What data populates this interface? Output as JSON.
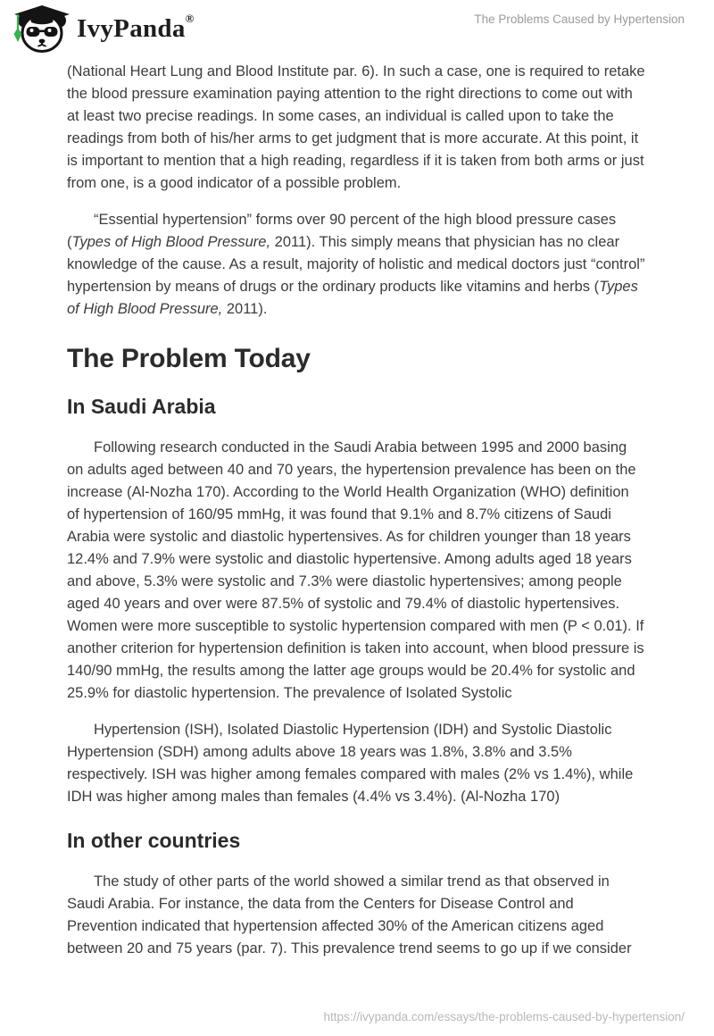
{
  "header": {
    "logo": {
      "text": "IvyPanda",
      "registered_mark": "®",
      "icon": "panda-graduate-icon"
    },
    "document_title": "The Problems Caused by Hypertension"
  },
  "content": {
    "blocks": [
      {
        "type": "paragraph",
        "indent": false,
        "segments": [
          {
            "text": "(National Heart Lung and Blood Institute par. 6). In such a case, one is required to retake the blood pressure examination paying attention to the right directions to come out with at least two precise readings. In some cases, an individual is called upon to take the readings from both of his/her arms to get judgment that is more accurate. At this point, it is important to mention that a high reading, regardless if it is taken from both arms or just from one, is a good indicator of a possible problem."
          }
        ]
      },
      {
        "type": "paragraph",
        "indent": true,
        "segments": [
          {
            "text": "“Essential hypertension” forms over 90 percent of the high blood pressure cases ("
          },
          {
            "text": "Types of High Blood Pressure,",
            "italic": true
          },
          {
            "text": " 2011). This simply means that physician has no clear knowledge of the cause. As a result, majority of holistic and medical doctors just “control” hypertension by means of drugs or the ordinary products like vitamins and herbs ("
          },
          {
            "text": "Types of High Blood Pressure,",
            "italic": true
          },
          {
            "text": " 2011)."
          }
        ]
      },
      {
        "type": "heading1",
        "text": "The Problem Today"
      },
      {
        "type": "heading2",
        "text": "In Saudi Arabia"
      },
      {
        "type": "paragraph",
        "indent": true,
        "segments": [
          {
            "text": "Following research conducted in the Saudi Arabia between 1995 and 2000 basing on adults aged between 40 and 70 years, the hypertension prevalence has been on the increase (Al-Nozha 170). According to the World Health Organization (WHO) definition of hypertension of 160/95 mmHg, it was found that 9.1% and 8.7% citizens of Saudi Arabia were systolic and diastolic hypertensives. As for children younger than 18 years 12.4% and 7.9% were systolic and diastolic hypertensive. Among adults aged 18 years and above, 5.3% were systolic and 7.3% were diastolic hypertensives; among people aged 40 years and over were 87.5% of systolic and 79.4% of diastolic hypertensives. Women were more susceptible to systolic hypertension compared with men (P < 0.01). If another criterion for hypertension definition is taken into account, when blood pressure is 140/90 mmHg, the results among the latter age groups would be 20.4% for systolic and 25.9% for diastolic hypertension. The prevalence of Isolated Systolic"
          }
        ]
      },
      {
        "type": "paragraph",
        "indent": true,
        "segments": [
          {
            "text": "Hypertension (ISH), Isolated Diastolic Hypertension (IDH) and Systolic Diastolic Hypertension (SDH) among adults above 18 years was 1.8%, 3.8% and 3.5% respectively. ISH was higher among females compared with males (2% vs 1.4%), while IDH was higher among males than females (4.4% vs 3.4%). (Al-Nozha 170)"
          }
        ]
      },
      {
        "type": "heading2",
        "text": "In other countries"
      },
      {
        "type": "paragraph",
        "indent": true,
        "segments": [
          {
            "text": "The study of other parts of the world showed a similar trend as that observed in Saudi Arabia. For instance, the data from the Centers for Disease Control and Prevention indicated that hypertension affected 30% of the American citizens aged between 20 and 75 years (par. 7). This prevalence trend seems to go up if we consider"
          }
        ]
      }
    ]
  },
  "footer": {
    "source_url": "https://ivypanda.com/essays/the-problems-caused-by-hypertension/"
  },
  "colors": {
    "body_text": "#3c3c3c",
    "heading_text": "#2b2b2b",
    "running_title_gray": "#9a9a9a",
    "footer_url_gray": "#b8b8b8",
    "logo_black": "#1d1d1d",
    "tassel_green": "#37b24d"
  }
}
